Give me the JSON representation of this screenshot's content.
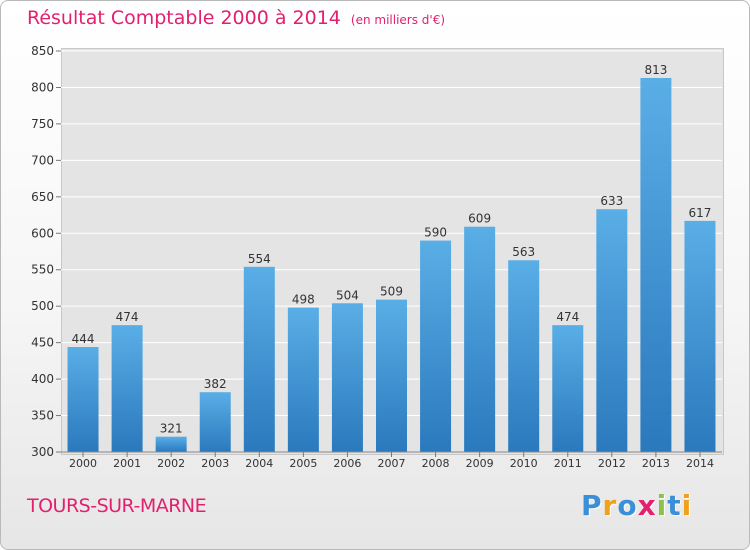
{
  "title": "Résultat Comptable 2000 à 2014",
  "subtitle": "(en milliers d'€)",
  "city": "TOURS-SUR-MARNE",
  "logo": {
    "text": "Proxiti",
    "letters": [
      "P",
      "r",
      "o",
      "x",
      "i",
      "t",
      "i"
    ],
    "colors": [
      "#3a8fd6",
      "#f0a11c",
      "#3a8fd6",
      "#e2206f",
      "#8bc34a",
      "#3a8fd6",
      "#f0a11c"
    ]
  },
  "colors": {
    "bar_top": "#5aaee6",
    "bar_bottom": "#2a79bd",
    "title": "#e2206f",
    "plot_bg": "#e4e4e4",
    "grid": "#ffffff"
  },
  "chart_data": {
    "type": "bar",
    "categories": [
      "2000",
      "2001",
      "2002",
      "2003",
      "2004",
      "2005",
      "2006",
      "2007",
      "2008",
      "2009",
      "2010",
      "2011",
      "2012",
      "2013",
      "2014"
    ],
    "values": [
      444,
      474,
      321,
      382,
      554,
      498,
      504,
      509,
      590,
      609,
      563,
      474,
      633,
      813,
      617
    ],
    "ylim": [
      300,
      850
    ],
    "yticks": [
      300,
      350,
      400,
      450,
      500,
      550,
      600,
      650,
      700,
      750,
      800,
      850
    ],
    "grid": true,
    "data_labels": true
  }
}
